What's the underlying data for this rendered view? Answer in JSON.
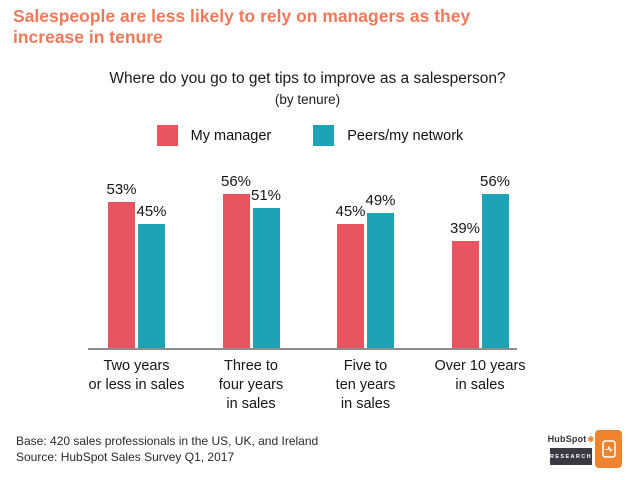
{
  "header": {
    "title": "Salespeople are less likely to rely on managers as they increase in tenure",
    "title_color": "#EF7A5B"
  },
  "chart_data": {
    "type": "bar",
    "title": "Where do you go to get tips to improve as a salesperson?",
    "subtitle": "(by tenure)",
    "categories": [
      "Two years or less in sales",
      "Three to four years in sales",
      "Five to ten years in sales",
      "Over 10 years in sales"
    ],
    "category_lines": [
      [
        "Two years",
        "or less in sales"
      ],
      [
        "Three to",
        "four years",
        "in sales"
      ],
      [
        "Five to",
        "ten years",
        "in sales"
      ],
      [
        "Over 10 years",
        "in sales"
      ]
    ],
    "series": [
      {
        "name": "My manager",
        "color": "#E8555E",
        "values": [
          53,
          56,
          45,
          39
        ]
      },
      {
        "name": "Peers/my network",
        "color": "#1CA3B6",
        "values": [
          45,
          51,
          49,
          56
        ]
      }
    ],
    "value_suffix": "%",
    "data_labels": true,
    "ylim": [
      0,
      64
    ],
    "grid": false,
    "y_axis_visible": false,
    "legend_position": "top"
  },
  "footer": {
    "base": "Base: 420 sales professionals in the US, UK, and Ireland",
    "source": "Source: HubSpot Sales Survey Q1, 2017"
  },
  "logo": {
    "brand": "HubSpot",
    "label": "RESEARCH",
    "accent": "#F0832D"
  }
}
